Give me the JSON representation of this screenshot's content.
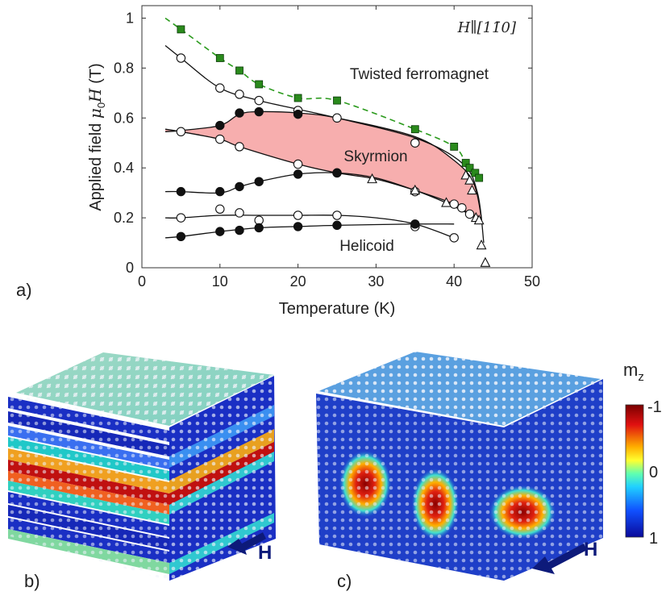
{
  "chart_data": {
    "type": "scatter",
    "title": "",
    "xlabel": "Temperature (K)",
    "ylabel": "Applied field μ0H (T)",
    "xlim": [
      0,
      50
    ],
    "ylim": [
      0,
      1.05
    ],
    "xticks": [
      "0",
      "10",
      "20",
      "30",
      "40",
      "50"
    ],
    "yticks": [
      "0",
      "0.2",
      "0.4",
      "0.6",
      "0.8",
      "1"
    ],
    "field_direction": "H∥[11̄0]",
    "regions": {
      "twisted": "Twisted ferromagnet",
      "skyrmion": "Skyrmion",
      "helicoid": "Helicoid",
      "skyrmion_color": "#f7aeae"
    },
    "series": [
      {
        "name": "green squares",
        "marker": "square",
        "color": "#2a8a1c",
        "x": [
          5,
          10,
          12.5,
          15,
          20,
          25,
          35,
          40,
          41.5,
          42,
          42.7,
          43.2
        ],
        "y": [
          0.955,
          0.84,
          0.79,
          0.735,
          0.68,
          0.67,
          0.555,
          0.485,
          0.42,
          0.4,
          0.38,
          0.36
        ]
      },
      {
        "name": "open circles upper",
        "marker": "open-circle",
        "x": [
          5,
          10,
          12.5,
          15,
          20,
          25,
          35
        ],
        "y": [
          0.84,
          0.72,
          0.695,
          0.67,
          0.63,
          0.6,
          0.5
        ]
      },
      {
        "name": "filled circles upper",
        "marker": "filled-circle",
        "x": [
          10,
          12.5,
          15,
          20
        ],
        "y": [
          0.57,
          0.62,
          0.625,
          0.615
        ]
      },
      {
        "name": "open circles middle",
        "marker": "open-circle",
        "x": [
          5,
          10,
          12.5,
          20,
          25,
          35,
          40,
          41,
          42
        ],
        "y": [
          0.545,
          0.515,
          0.485,
          0.415,
          0.38,
          0.305,
          0.255,
          0.24,
          0.215
        ]
      },
      {
        "name": "filled circles middle",
        "marker": "filled-circle",
        "x": [
          5,
          10,
          12.5,
          15,
          20,
          25
        ],
        "y": [
          0.305,
          0.305,
          0.325,
          0.345,
          0.375,
          0.38
        ]
      },
      {
        "name": "triangles",
        "marker": "open-triangle",
        "x": [
          29.5,
          35,
          39,
          41.5,
          42,
          42.3,
          42.8,
          43.2,
          43.5,
          44
        ],
        "y": [
          0.355,
          0.31,
          0.26,
          0.37,
          0.35,
          0.31,
          0.2,
          0.19,
          0.09,
          0.02
        ]
      },
      {
        "name": "open circles lower",
        "marker": "open-circle",
        "x": [
          5,
          10,
          12.5,
          15,
          20,
          25,
          35,
          40
        ],
        "y": [
          0.2,
          0.235,
          0.22,
          0.19,
          0.21,
          0.21,
          0.165,
          0.12
        ]
      },
      {
        "name": "filled circles lower",
        "marker": "filled-circle",
        "x": [
          5,
          10,
          12.5,
          15,
          20,
          25,
          35
        ],
        "y": [
          0.125,
          0.145,
          0.15,
          0.16,
          0.165,
          0.17,
          0.175
        ]
      }
    ],
    "curves": {
      "upper_twisted": {
        "x": [
          3,
          5,
          10,
          15,
          20,
          25,
          35,
          41,
          43,
          43.8
        ],
        "y": [
          0.89,
          0.84,
          0.72,
          0.67,
          0.635,
          0.6,
          0.52,
          0.42,
          0.3,
          0.1
        ]
      },
      "green_dashed": {
        "x": [
          3,
          5,
          10,
          12.5,
          15,
          20,
          25,
          35,
          40,
          41.5,
          42.7,
          43.2
        ],
        "y": [
          1.0,
          0.955,
          0.84,
          0.79,
          0.735,
          0.68,
          0.67,
          0.555,
          0.485,
          0.42,
          0.38,
          0.36
        ]
      },
      "sky_top": {
        "x": [
          3,
          5,
          10,
          12.5,
          15,
          20,
          25,
          35,
          40,
          42.5,
          43.5
        ],
        "y": [
          0.545,
          0.55,
          0.57,
          0.615,
          0.625,
          0.62,
          0.6,
          0.525,
          0.43,
          0.34,
          0.2
        ]
      },
      "sky_bottom": {
        "x": [
          3,
          5,
          10,
          12.5,
          20,
          25,
          30,
          35,
          40,
          42,
          43.5
        ],
        "y": [
          0.555,
          0.545,
          0.515,
          0.485,
          0.415,
          0.38,
          0.355,
          0.31,
          0.255,
          0.215,
          0.2
        ]
      },
      "helicoid_top": {
        "x": [
          3,
          5,
          10,
          12.5,
          15,
          20,
          25,
          30,
          35,
          39,
          42,
          43.5
        ],
        "y": [
          0.305,
          0.305,
          0.3,
          0.325,
          0.345,
          0.375,
          0.38,
          0.36,
          0.31,
          0.26,
          0.215,
          0.2
        ]
      },
      "lower_open": {
        "x": [
          3,
          5,
          10,
          15,
          20,
          25,
          30,
          35,
          40
        ],
        "y": [
          0.2,
          0.2,
          0.21,
          0.21,
          0.21,
          0.21,
          0.2,
          0.175,
          0.12
        ]
      },
      "lower_filled": {
        "x": [
          3,
          5,
          10,
          15,
          20,
          25,
          35,
          40
        ],
        "y": [
          0.12,
          0.125,
          0.145,
          0.16,
          0.165,
          0.17,
          0.175,
          0.175
        ]
      }
    }
  },
  "panels": {
    "a": "a)",
    "b": "b)",
    "c": "c)"
  },
  "arrows": {
    "label": "H",
    "color": "#0d1a7a"
  },
  "colorbar": {
    "title": "m",
    "subscript": "z",
    "ticks": [
      "-1",
      "0",
      "1"
    ]
  }
}
